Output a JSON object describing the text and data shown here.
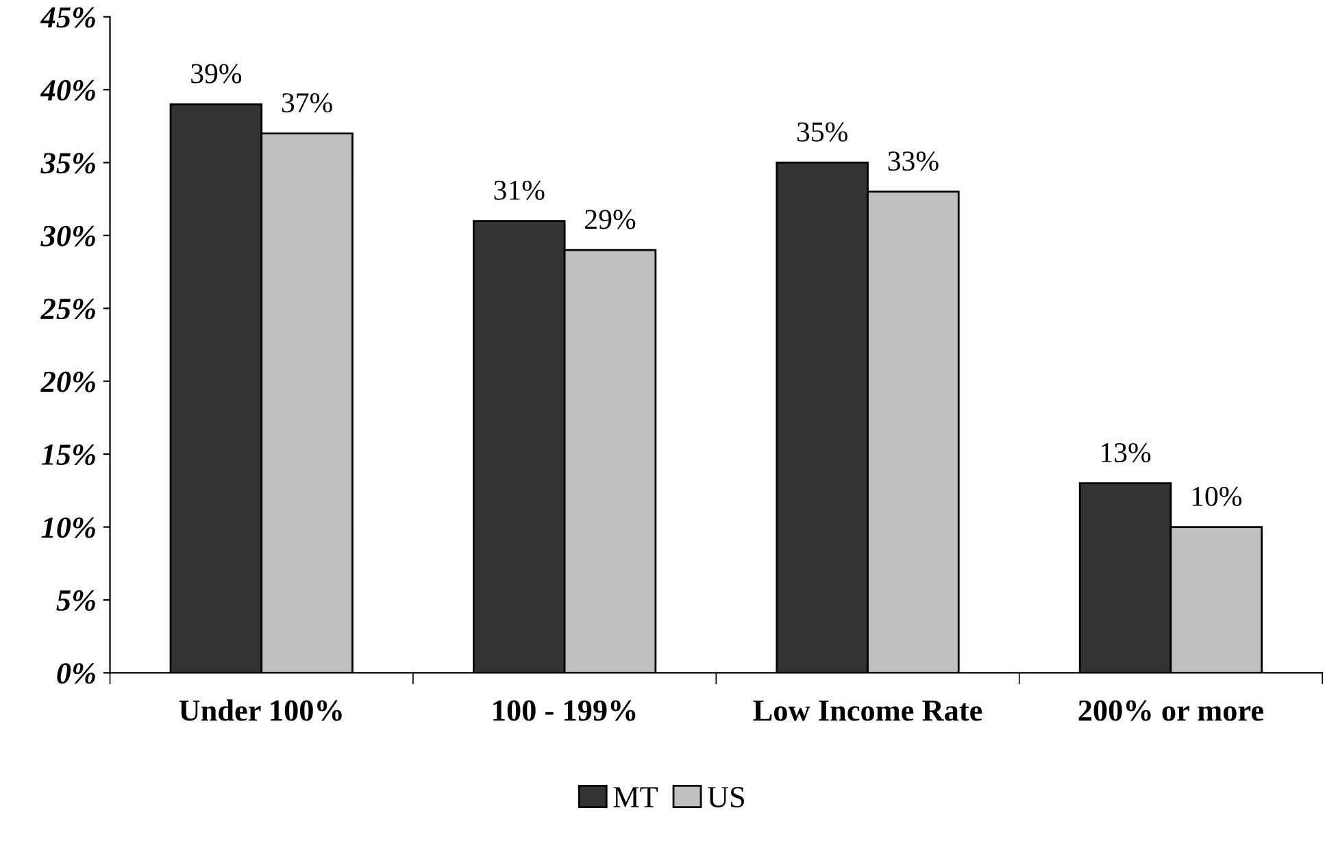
{
  "chart_data": {
    "type": "bar",
    "categories": [
      "Under 100%",
      "100 - 199%",
      "Low Income Rate",
      "200% or more"
    ],
    "series": [
      {
        "name": "MT",
        "color": "#333333",
        "values": [
          39,
          31,
          35,
          13
        ],
        "value_labels": [
          "39%",
          "31%",
          "35%",
          "13%"
        ]
      },
      {
        "name": "US",
        "color": "#c0c0c0",
        "values": [
          37,
          29,
          33,
          10
        ],
        "value_labels": [
          "37%",
          "29%",
          "33%",
          "10%"
        ]
      }
    ],
    "ylim": [
      0,
      45
    ],
    "yticks": [
      {
        "value": 0,
        "label": "0%"
      },
      {
        "value": 5,
        "label": "5%"
      },
      {
        "value": 10,
        "label": "10%"
      },
      {
        "value": 15,
        "label": "15%"
      },
      {
        "value": 20,
        "label": "20%"
      },
      {
        "value": 25,
        "label": "25%"
      },
      {
        "value": 30,
        "label": "30%"
      },
      {
        "value": 35,
        "label": "35%"
      },
      {
        "value": 40,
        "label": "40%"
      },
      {
        "value": 45,
        "label": "45%"
      }
    ],
    "grid": false,
    "legend": "bottom"
  }
}
